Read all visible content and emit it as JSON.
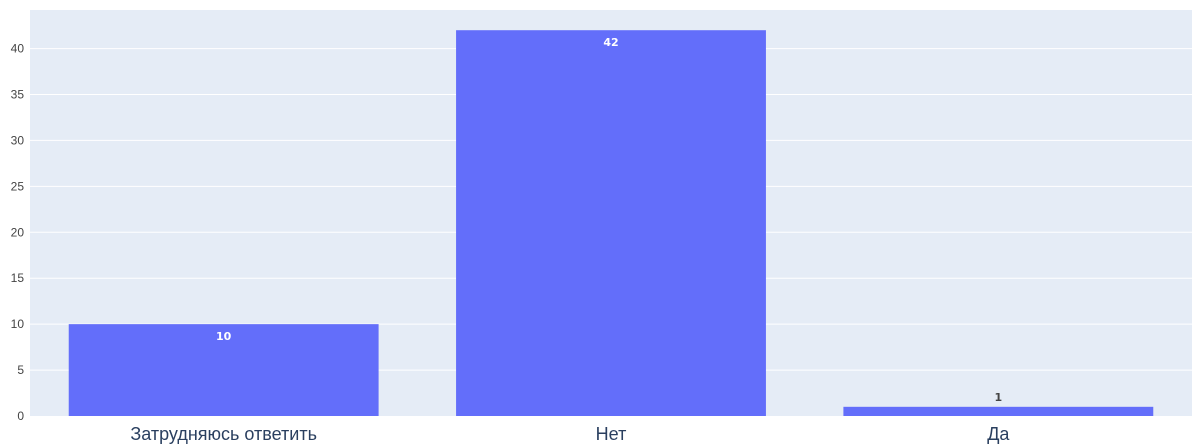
{
  "colors": {
    "plot_bg": "#e5ecf6",
    "grid": "#ffffff",
    "bar": "#636efa",
    "label_inside": "#ffffff",
    "label_outside": "#444444"
  },
  "chart_data": {
    "type": "bar",
    "categories": [
      "Затрудняюсь ответить",
      "Нет",
      "Да"
    ],
    "values": [
      10,
      42,
      1
    ],
    "data_labels": [
      "10",
      "42",
      "1"
    ],
    "title": "",
    "xlabel": "",
    "ylabel": "",
    "ylim": [
      0,
      44.2
    ],
    "yticks": [
      "0",
      "5",
      "10",
      "15",
      "20",
      "25",
      "30",
      "35",
      "40"
    ],
    "grid": true,
    "legend": "none"
  }
}
